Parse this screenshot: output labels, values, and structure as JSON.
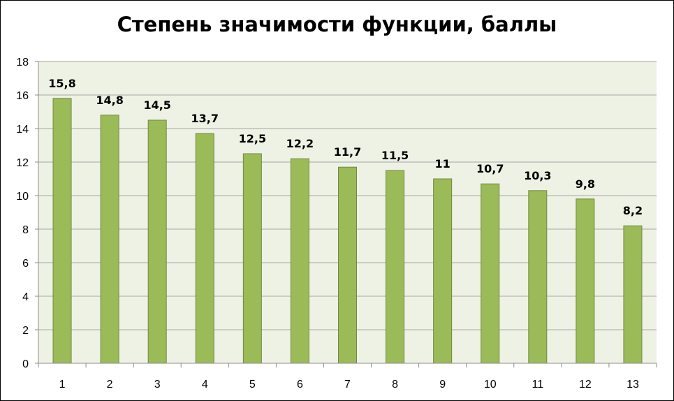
{
  "chart_data": {
    "type": "bar",
    "title": "Степень значимости функции, баллы",
    "xlabel": "",
    "ylabel": "",
    "categories": [
      "1",
      "2",
      "3",
      "4",
      "5",
      "6",
      "7",
      "8",
      "9",
      "10",
      "11",
      "12",
      "13"
    ],
    "values": [
      15.8,
      14.8,
      14.5,
      13.7,
      12.5,
      12.2,
      11.7,
      11.5,
      11,
      10.7,
      10.3,
      9.8,
      8.2
    ],
    "data_labels": [
      "15,8",
      "14,8",
      "14,5",
      "13,7",
      "12,5",
      "12,2",
      "11,7",
      "11,5",
      "11",
      "10,7",
      "10,3",
      "9,8",
      "8,2"
    ],
    "ylim": [
      0,
      18
    ],
    "y_ticks": [
      "0",
      "2",
      "4",
      "6",
      "8",
      "10",
      "12",
      "14",
      "16",
      "18"
    ],
    "grid": true,
    "legend": "none",
    "colors": {
      "bar_fill": "#9bbb59",
      "bar_stroke": "#71893f",
      "plot_background": "#eef2e4",
      "gridline": "#a6a6a6",
      "axis": "#8c8c8c"
    }
  }
}
